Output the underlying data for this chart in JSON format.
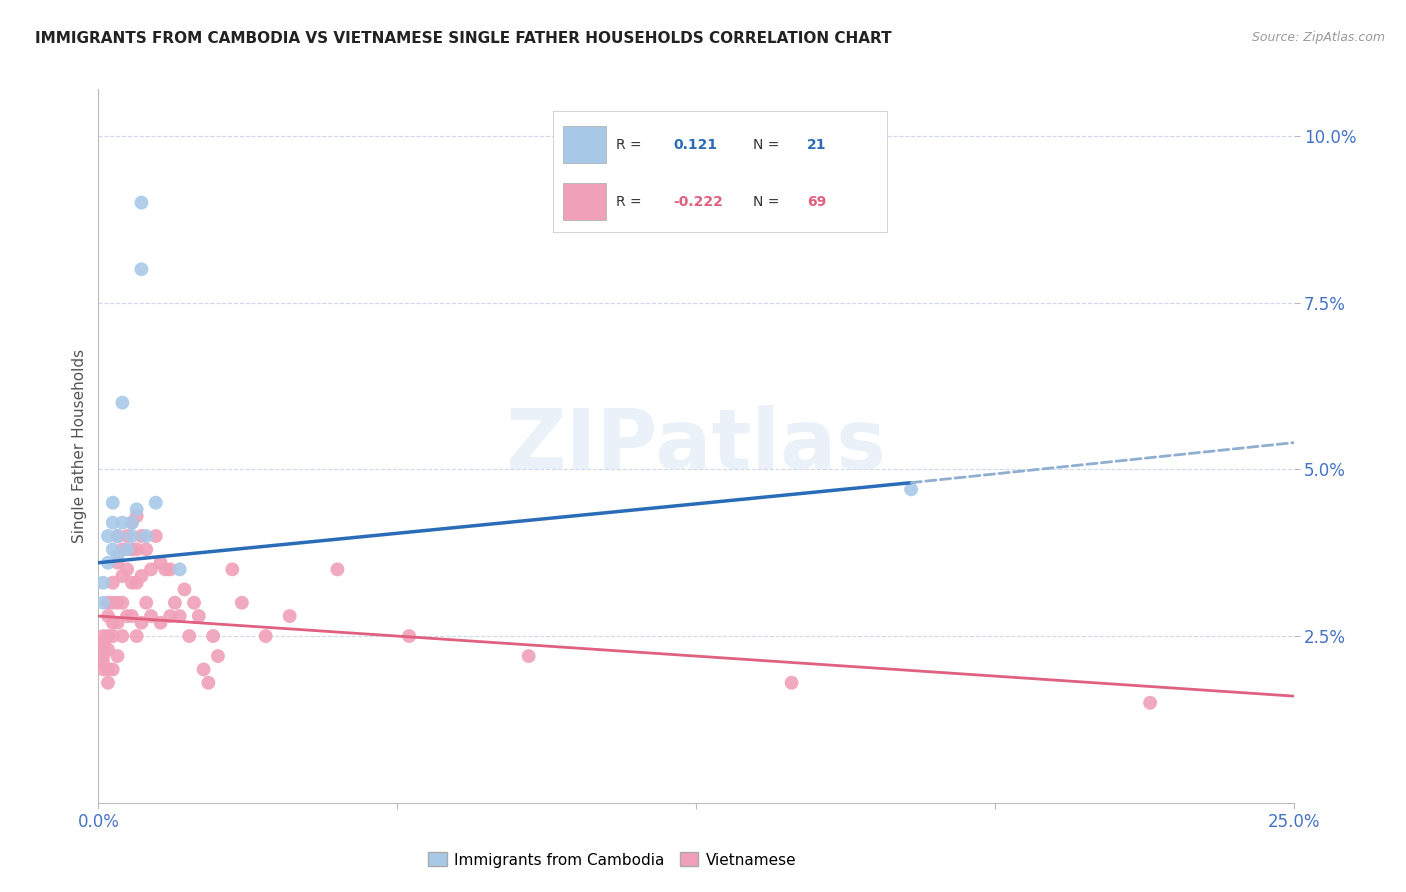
{
  "title": "IMMIGRANTS FROM CAMBODIA VS VIETNAMESE SINGLE FATHER HOUSEHOLDS CORRELATION CHART",
  "source": "Source: ZipAtlas.com",
  "ylabel": "Single Father Households",
  "ytick_labels": [
    "2.5%",
    "5.0%",
    "7.5%",
    "10.0%"
  ],
  "ytick_vals": [
    0.025,
    0.05,
    0.075,
    0.1
  ],
  "xtick_vals": [
    0.0,
    0.0625,
    0.125,
    0.1875,
    0.25
  ],
  "xtick_labels": [
    "0.0%",
    "",
    "",
    "",
    "25.0%"
  ],
  "xlim": [
    0.0,
    0.25
  ],
  "ylim": [
    0.0,
    0.107
  ],
  "legend_blue_r": "0.121",
  "legend_blue_n": "21",
  "legend_pink_r": "-0.222",
  "legend_pink_n": "69",
  "legend_bottom_label1": "Immigrants from Cambodia",
  "legend_bottom_label2": "Vietnamese",
  "watermark": "ZIPatlas",
  "cambodia_x": [
    0.001,
    0.001,
    0.002,
    0.002,
    0.003,
    0.003,
    0.003,
    0.004,
    0.004,
    0.005,
    0.005,
    0.006,
    0.007,
    0.007,
    0.008,
    0.009,
    0.009,
    0.01,
    0.012,
    0.017,
    0.17
  ],
  "cambodia_y": [
    0.03,
    0.033,
    0.036,
    0.04,
    0.038,
    0.042,
    0.045,
    0.04,
    0.037,
    0.042,
    0.06,
    0.038,
    0.042,
    0.04,
    0.044,
    0.08,
    0.09,
    0.04,
    0.045,
    0.035,
    0.047
  ],
  "vietnamese_x": [
    0.001,
    0.001,
    0.001,
    0.001,
    0.001,
    0.001,
    0.002,
    0.002,
    0.002,
    0.002,
    0.002,
    0.002,
    0.003,
    0.003,
    0.003,
    0.003,
    0.003,
    0.004,
    0.004,
    0.004,
    0.004,
    0.004,
    0.005,
    0.005,
    0.005,
    0.005,
    0.006,
    0.006,
    0.006,
    0.007,
    0.007,
    0.007,
    0.007,
    0.008,
    0.008,
    0.008,
    0.008,
    0.009,
    0.009,
    0.009,
    0.01,
    0.01,
    0.011,
    0.011,
    0.012,
    0.013,
    0.013,
    0.014,
    0.015,
    0.015,
    0.016,
    0.017,
    0.018,
    0.019,
    0.02,
    0.021,
    0.022,
    0.023,
    0.024,
    0.025,
    0.028,
    0.03,
    0.035,
    0.04,
    0.05,
    0.065,
    0.09,
    0.145,
    0.22
  ],
  "vietnamese_y": [
    0.025,
    0.024,
    0.023,
    0.022,
    0.021,
    0.02,
    0.03,
    0.028,
    0.025,
    0.023,
    0.02,
    0.018,
    0.033,
    0.03,
    0.027,
    0.025,
    0.02,
    0.04,
    0.036,
    0.03,
    0.027,
    0.022,
    0.038,
    0.034,
    0.03,
    0.025,
    0.04,
    0.035,
    0.028,
    0.042,
    0.038,
    0.033,
    0.028,
    0.043,
    0.038,
    0.033,
    0.025,
    0.04,
    0.034,
    0.027,
    0.038,
    0.03,
    0.035,
    0.028,
    0.04,
    0.036,
    0.027,
    0.035,
    0.035,
    0.028,
    0.03,
    0.028,
    0.032,
    0.025,
    0.03,
    0.028,
    0.02,
    0.018,
    0.025,
    0.022,
    0.035,
    0.03,
    0.025,
    0.028,
    0.035,
    0.025,
    0.022,
    0.018,
    0.015
  ],
  "cambodia_line_color": "#2b6cb8",
  "cambodia_scatter_color": "#a8c8e8",
  "cambodia_scatter_edge": "none",
  "vietnamese_line_color": "#e06080",
  "vietnamese_scatter_color": "#f0a0b8",
  "vietnamese_scatter_edge": "none",
  "line_blue_x0": 0.0,
  "line_blue_y0": 0.036,
  "line_blue_x1": 0.17,
  "line_blue_y1": 0.048,
  "line_blue_dash_x1": 0.25,
  "line_blue_dash_y1": 0.054,
  "line_pink_x0": 0.0,
  "line_pink_y0": 0.028,
  "line_pink_x1": 0.25,
  "line_pink_y1": 0.016,
  "background_color": "#ffffff",
  "grid_color": "#ccd8ec",
  "axis_color": "#4472c4",
  "dashed_color": "#90aed0",
  "scatter_size": 100
}
